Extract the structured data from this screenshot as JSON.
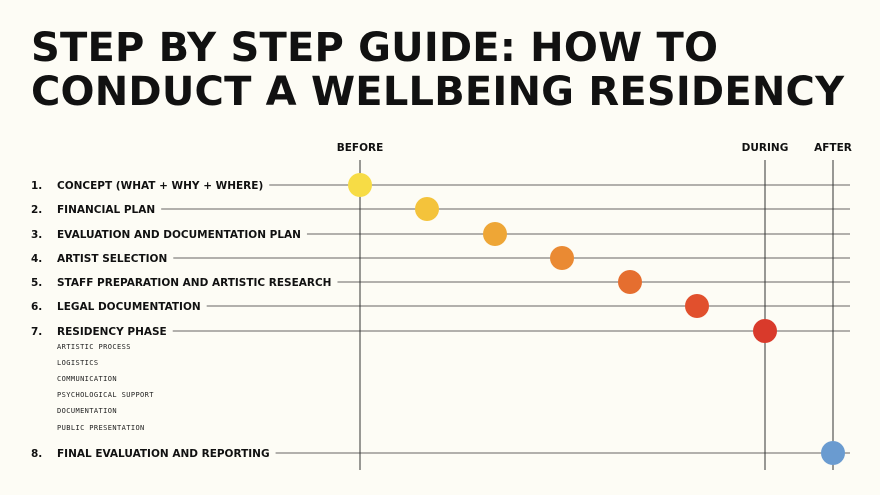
{
  "title": {
    "line1": "STEP BY STEP GUIDE: HOW TO",
    "line2": "CONDUCT A WELLBEING RESIDENCY"
  },
  "phases": [
    {
      "label": "BEFORE"
    },
    {
      "label": "DURING"
    },
    {
      "label": "AFTER"
    }
  ],
  "steps": [
    {
      "num": "1.",
      "label": "CONCEPT (WHAT + WHY + WHERE)",
      "color": "#f7dc45"
    },
    {
      "num": "2.",
      "label": "FINANCIAL PLAN",
      "color": "#f4c33b"
    },
    {
      "num": "3.",
      "label": "EVALUATION AND DOCUMENTATION PLAN",
      "color": "#eea636"
    },
    {
      "num": "4.",
      "label": "ARTIST SELECTION",
      "color": "#ea8a33"
    },
    {
      "num": "5.",
      "label": "STAFF PREPARATION AND ARTISTIC RESEARCH",
      "color": "#e56e2f"
    },
    {
      "num": "6.",
      "label": "LEGAL DOCUMENTATION",
      "color": "#e1502d"
    },
    {
      "num": "7.",
      "label": "RESIDENCY PHASE",
      "color": "#d93a2b"
    },
    {
      "num": "8.",
      "label": "FINAL EVALUATION AND  REPORTING",
      "color": "#6a9bd0"
    }
  ],
  "residency_subitems": [
    "ARTISTIC PROCESS",
    "LOGISTICS",
    "COMMUNICATION",
    "PSYCHOLOGICAL SUPPORT",
    "DOCUMENTATION",
    "PUBLIC PRESENTATION"
  ]
}
